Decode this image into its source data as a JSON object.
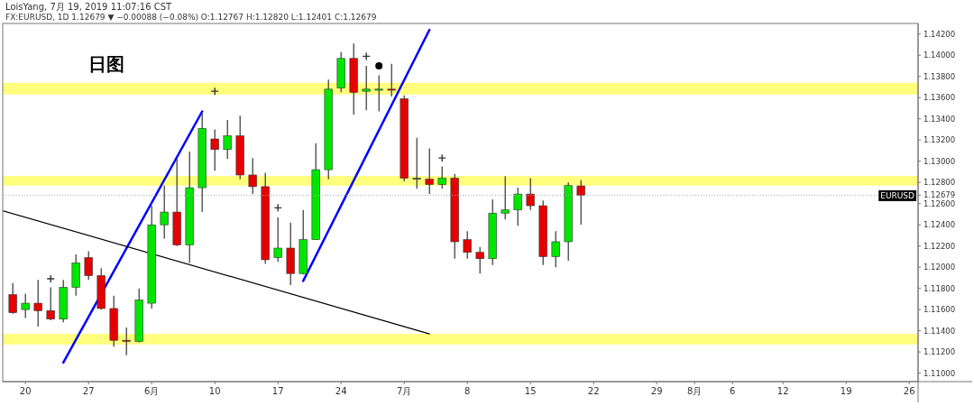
{
  "chart_data": {
    "type": "candlestick",
    "title": "LoisYang, 7月 19, 2019 11:07:16 CST",
    "subtitle": "FX:EURUSD, 1D 1.12679 ▼ −0.00088 (−0.08%) O:1.12767 H:1.12820 L:1.12401 C:1.12679",
    "categories": [
      null,
      null,
      "20",
      null,
      null,
      null,
      null,
      "27",
      null,
      null,
      null,
      null,
      "6月",
      null,
      null,
      null,
      null,
      "10",
      null,
      null,
      null,
      null,
      "17",
      null,
      null,
      null,
      null,
      "24",
      null,
      null,
      null,
      null,
      "7月",
      null,
      null,
      null,
      null,
      "8",
      null,
      null,
      null,
      null,
      "15",
      null,
      null,
      null,
      null,
      "22",
      null,
      null,
      null,
      null,
      "29",
      null,
      null,
      "8月",
      null,
      null,
      "6",
      null,
      null,
      null,
      "12",
      null,
      null,
      null,
      null,
      "19",
      null,
      null,
      null,
      null,
      "26"
    ],
    "ohlc": [
      null,
      [
        1.1174,
        1.1185,
        1.1156,
        1.1157
      ],
      [
        1.116,
        1.1175,
        1.1152,
        1.1166
      ],
      [
        1.1166,
        1.1188,
        1.1144,
        1.1159
      ],
      [
        1.1159,
        1.1181,
        1.115,
        1.1151
      ],
      [
        1.1151,
        1.1188,
        1.1148,
        1.1181
      ],
      [
        1.1181,
        1.1212,
        1.1173,
        1.1204
      ],
      [
        1.1209,
        1.1215,
        1.1188,
        1.1192
      ],
      [
        1.1192,
        1.1199,
        1.116,
        1.1161
      ],
      [
        1.1161,
        1.1173,
        1.1125,
        1.1131
      ],
      [
        1.1131,
        1.1143,
        1.1117,
        1.113
      ],
      [
        1.113,
        1.118,
        1.1129,
        1.1169
      ],
      [
        1.1166,
        1.1258,
        1.1161,
        1.124
      ],
      [
        1.124,
        1.1277,
        1.1227,
        1.1252
      ],
      [
        1.1252,
        1.1302,
        1.122,
        1.1221
      ],
      [
        1.1221,
        1.1309,
        1.1204,
        1.1275
      ],
      [
        1.1275,
        1.1345,
        1.1252,
        1.1331
      ],
      [
        1.1321,
        1.133,
        1.1291,
        1.1311
      ],
      [
        1.1311,
        1.1339,
        1.1302,
        1.1324
      ],
      [
        1.1324,
        1.1343,
        1.1283,
        1.1287
      ],
      [
        1.1287,
        1.1303,
        1.1269,
        1.1276
      ],
      [
        1.1276,
        1.1289,
        1.1203,
        1.1207
      ],
      [
        1.1209,
        1.1247,
        1.1205,
        1.1218
      ],
      [
        1.1218,
        1.1242,
        1.1183,
        1.1194
      ],
      [
        1.1194,
        1.1254,
        1.1193,
        1.1226
      ],
      [
        1.1226,
        1.1317,
        1.1226,
        1.1292
      ],
      [
        1.1292,
        1.1377,
        1.1283,
        1.1368
      ],
      [
        1.1369,
        1.1403,
        1.1365,
        1.1397
      ],
      [
        1.1397,
        1.1411,
        1.1344,
        1.1365
      ],
      [
        1.1366,
        1.139,
        1.1348,
        1.1368
      ],
      [
        1.1368,
        1.1381,
        1.1347,
        1.1368
      ],
      [
        1.1368,
        1.1392,
        1.1361,
        1.1368
      ],
      [
        1.1359,
        1.1362,
        1.1281,
        1.1284
      ],
      [
        1.1284,
        1.1322,
        1.1274,
        1.1284
      ],
      [
        1.1283,
        1.1312,
        1.1269,
        1.1278
      ],
      [
        1.1278,
        1.1295,
        1.1274,
        1.1284
      ],
      [
        1.1284,
        1.1288,
        1.1208,
        1.1224
      ],
      [
        1.1226,
        1.1234,
        1.1208,
        1.1214
      ],
      [
        1.1214,
        1.1219,
        1.1194,
        1.1208
      ],
      [
        1.1208,
        1.1264,
        1.1202,
        1.1251
      ],
      [
        1.1251,
        1.1286,
        1.1245,
        1.1254
      ],
      [
        1.1254,
        1.1275,
        1.1239,
        1.1269
      ],
      [
        1.1269,
        1.1284,
        1.1254,
        1.1258
      ],
      [
        1.1258,
        1.1263,
        1.1202,
        1.121
      ],
      [
        1.121,
        1.1234,
        1.12,
        1.1224
      ],
      [
        1.1224,
        1.128,
        1.1206,
        1.1277
      ],
      [
        1.12767,
        1.1282,
        1.12401,
        1.12679
      ],
      null,
      null,
      null,
      null,
      null,
      null,
      null,
      null,
      null,
      null,
      null,
      null,
      null,
      null,
      null,
      null,
      null,
      null,
      null,
      null,
      null,
      null,
      null,
      null,
      null,
      null
    ],
    "colors": [
      null,
      "#e60000",
      "#00e600",
      "#e60000",
      "#e60000",
      "#00e600",
      "#00e600",
      "#e60000",
      "#e60000",
      "#e60000",
      "#e60000",
      "#00e600",
      "#00e600",
      "#00e600",
      "#e60000",
      "#00e600",
      "#00e600",
      "#e60000",
      "#00e600",
      "#e60000",
      "#e60000",
      "#e60000",
      "#00e600",
      "#e60000",
      "#00e600",
      "#00e600",
      "#00e600",
      "#00e600",
      "#e60000",
      "#00e600",
      "#00e600",
      "#e60000",
      "#e60000",
      "#555555",
      "#e60000",
      "#00e600",
      "#e60000",
      "#e60000",
      "#e60000",
      "#00e600",
      "#00e600",
      "#00e600",
      "#e60000",
      "#e60000",
      "#00e600",
      "#00e600",
      "#e60000",
      null,
      null,
      null,
      null,
      null,
      null,
      null,
      null,
      null,
      null,
      null,
      null,
      null,
      null,
      null,
      null,
      null,
      null,
      null,
      null,
      null,
      null,
      null,
      null,
      null,
      null
    ],
    "series": [
      {
        "type": "line",
        "color": "#0000ff",
        "values": [
          null,
          null,
          null,
          null,
          null,
          1.111,
          null,
          null,
          null,
          null,
          null,
          null,
          null,
          null,
          null,
          null,
          1.1347,
          null,
          null,
          null,
          null,
          null,
          null,
          null,
          null,
          null,
          null,
          null,
          null,
          null,
          null,
          null,
          null,
          null,
          null,
          null,
          null,
          null,
          null,
          null,
          null,
          null,
          null,
          null,
          null,
          null,
          null,
          null,
          null,
          null,
          null,
          null,
          null,
          null,
          null,
          null,
          null,
          null,
          null,
          null,
          null,
          null,
          null,
          null,
          null,
          null,
          null,
          null,
          null,
          null,
          null,
          null,
          null
        ]
      },
      {
        "type": "line",
        "color": "#0000ff",
        "values": [
          null,
          null,
          null,
          null,
          null,
          null,
          null,
          null,
          null,
          null,
          null,
          null,
          null,
          null,
          null,
          null,
          null,
          null,
          null,
          null,
          null,
          null,
          null,
          null,
          1.1187,
          null,
          null,
          null,
          null,
          null,
          null,
          null,
          null,
          null,
          1.1424,
          null,
          null,
          null,
          null,
          null,
          null,
          null,
          null,
          null,
          null,
          null,
          null,
          null,
          null,
          null,
          null,
          null,
          null,
          null,
          null,
          null,
          null,
          null,
          null,
          null,
          null,
          null,
          null,
          null,
          null,
          null,
          null,
          null,
          null,
          null,
          null,
          null,
          null
        ]
      },
      {
        "type": "line",
        "color": "#000000",
        "values": [
          1.1254,
          null,
          null,
          null,
          null,
          null,
          null,
          null,
          null,
          null,
          null,
          null,
          null,
          null,
          null,
          null,
          null,
          null,
          null,
          null,
          null,
          null,
          null,
          null,
          null,
          null,
          null,
          null,
          null,
          null,
          null,
          null,
          null,
          null,
          1.1137,
          null,
          null,
          null,
          null,
          null,
          null,
          null,
          null,
          null,
          null,
          null,
          null,
          null,
          null,
          null,
          null,
          null,
          null,
          null,
          null,
          null,
          null,
          null,
          null,
          null,
          null,
          null,
          null,
          null,
          null,
          null,
          null,
          null,
          null,
          null,
          null,
          null,
          null
        ]
      },
      {
        "type": "scatter",
        "color": "#333333",
        "marker": "cross",
        "values": [
          null,
          null,
          null,
          null,
          1.1189,
          null,
          null,
          null,
          null,
          null,
          null,
          null,
          null,
          null,
          null,
          null,
          null,
          1.1366,
          null,
          null,
          null,
          null,
          1.1256,
          null,
          null,
          null,
          null,
          null,
          null,
          1.1399,
          null,
          null,
          null,
          null,
          null,
          1.1303,
          null,
          null,
          null,
          null,
          null,
          null,
          null,
          null,
          null,
          null,
          null,
          null,
          null,
          null,
          null,
          null,
          null,
          null,
          null,
          null,
          null,
          null,
          null,
          null,
          null,
          null,
          null,
          null,
          null,
          null,
          null,
          null,
          null,
          null,
          null,
          null,
          null
        ]
      },
      {
        "type": "scatter",
        "color": "#000000",
        "marker": "circle",
        "values": [
          null,
          null,
          null,
          null,
          null,
          null,
          null,
          null,
          null,
          null,
          null,
          null,
          null,
          null,
          null,
          null,
          null,
          null,
          null,
          null,
          null,
          null,
          null,
          null,
          null,
          null,
          null,
          null,
          null,
          null,
          1.139,
          null,
          null,
          null,
          null,
          null,
          null,
          null,
          null,
          null,
          null,
          null,
          null,
          null,
          null,
          null,
          null,
          null,
          null,
          null,
          null,
          null,
          null,
          null,
          null,
          null,
          null,
          null,
          null,
          null,
          null,
          null,
          null,
          null,
          null,
          null,
          null,
          null,
          null,
          null,
          null,
          null,
          null
        ]
      }
    ],
    "bands": [
      {
        "axis": "y",
        "from": 1.1363,
        "to": 1.1374,
        "color": "#ffff66"
      },
      {
        "axis": "y",
        "from": 1.1277,
        "to": 1.1286,
        "color": "#ffff66"
      },
      {
        "axis": "y",
        "from": 1.1127,
        "to": 1.1137,
        "color": "#ffff66"
      }
    ],
    "ref_lines": [
      {
        "axis": "y",
        "value": 1.12679,
        "label": "EURUSD",
        "color": "#aaaaaa",
        "line_style": "dotted"
      }
    ],
    "annotations": [
      "日图"
    ],
    "ylim": [
      1.1092,
      1.143
    ],
    "yticks": [
      {
        "value": 1.11,
        "label": "1.11000"
      },
      {
        "value": 1.112,
        "label": "1.11200"
      },
      {
        "value": 1.114,
        "label": "1.11400"
      },
      {
        "value": 1.116,
        "label": "1.11600"
      },
      {
        "value": 1.118,
        "label": "1.11800"
      },
      {
        "value": 1.12,
        "label": "1.12000"
      },
      {
        "value": 1.122,
        "label": "1.12200"
      },
      {
        "value": 1.124,
        "label": "1.12400"
      },
      {
        "value": 1.126,
        "label": "1.12600"
      },
      {
        "value": 1.12679,
        "label": "1.12679"
      },
      {
        "value": 1.128,
        "label": "1.12800"
      },
      {
        "value": 1.13,
        "label": "1.13000"
      },
      {
        "value": 1.132,
        "label": "1.13200"
      },
      {
        "value": 1.134,
        "label": "1.13400"
      },
      {
        "value": 1.136,
        "label": "1.13600"
      },
      {
        "value": 1.138,
        "label": "1.13800"
      },
      {
        "value": 1.14,
        "label": "1.14000"
      },
      {
        "value": 1.142,
        "label": "1.14200"
      }
    ]
  }
}
